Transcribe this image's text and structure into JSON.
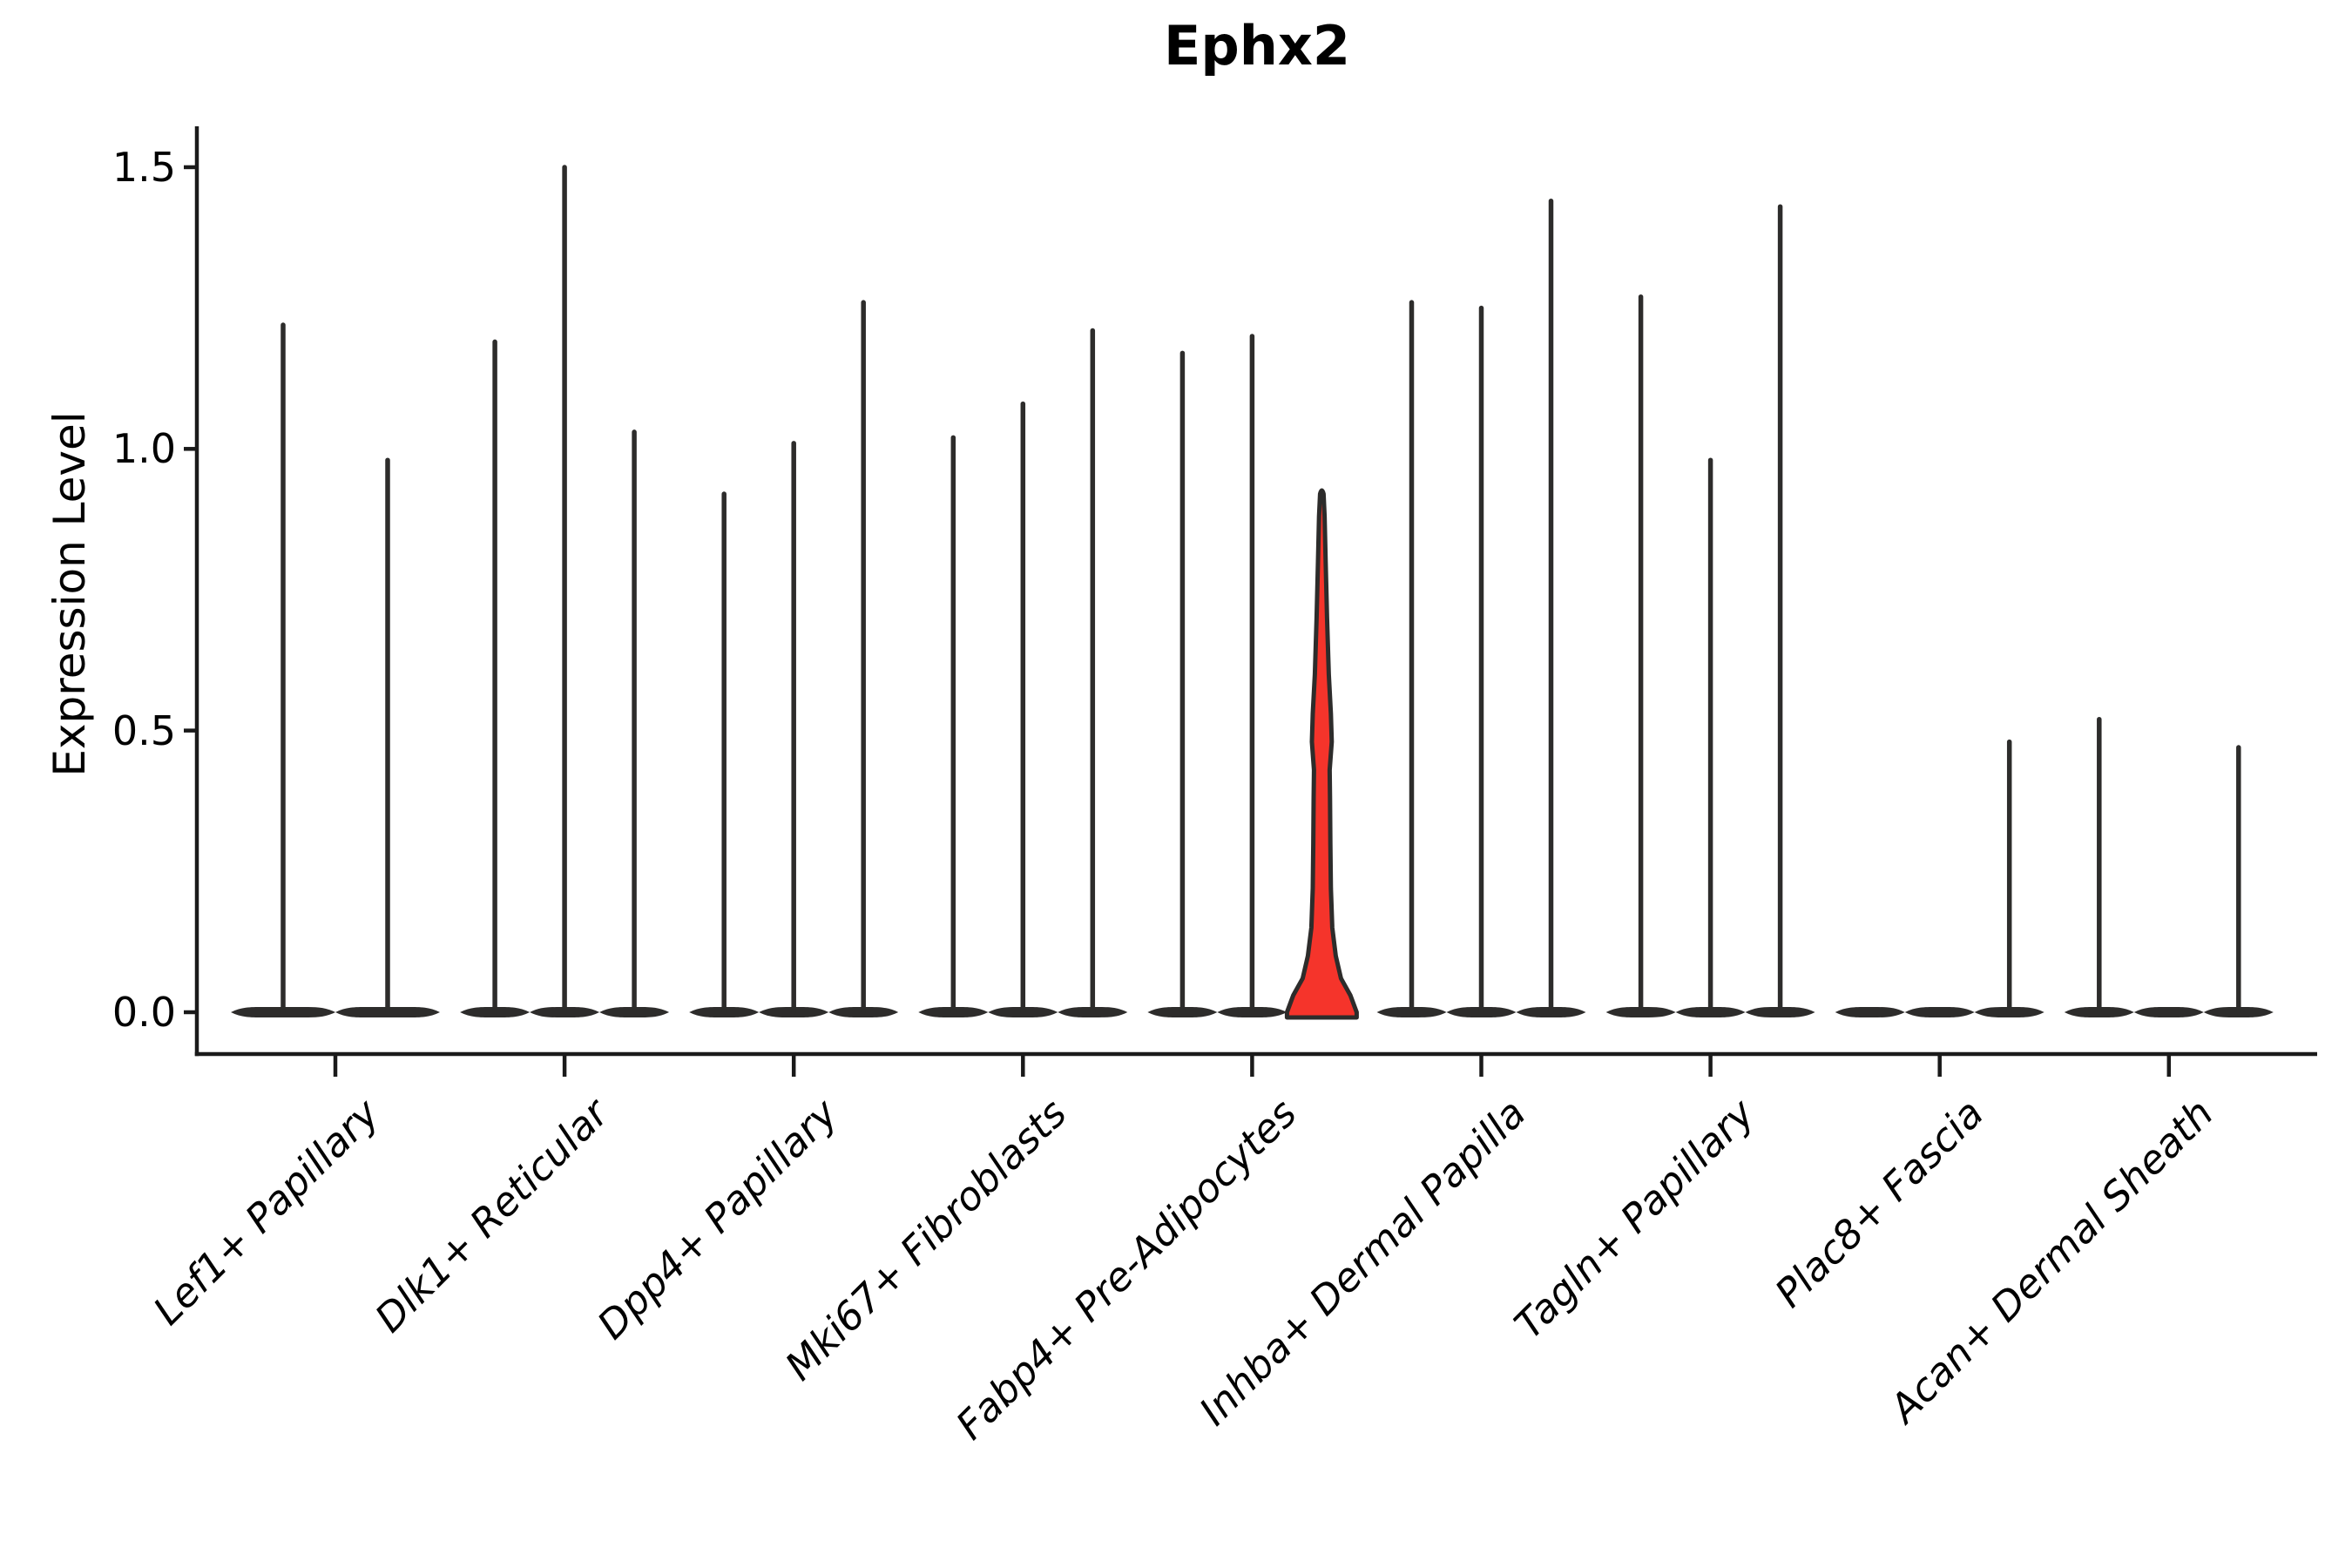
{
  "title": "Ephx2",
  "y_axis": {
    "label": "Expression Level",
    "ticks": [
      "0.0",
      "0.5",
      "1.0",
      "1.5"
    ],
    "tick_values": [
      0.0,
      0.5,
      1.0,
      1.5
    ]
  },
  "x_axis": {
    "categories": [
      "Lef1+ Papillary",
      "Dlk1+ Reticular",
      "Dpp4+ Papillary",
      "Mki67+ Fibroblasts",
      "Fabp4+ Pre-Adipocytes",
      "Inhba+ Dermal Papilla",
      "Tagln+ Papillary",
      "Plac8+ Fascia",
      "Acan+ Dermal Sheath"
    ]
  },
  "chart_data": {
    "type": "violin",
    "title": "Ephx2",
    "xlabel": "",
    "ylabel": "Expression Level",
    "ylim": [
      0,
      1.58
    ],
    "yticks": [
      0.0,
      0.5,
      1.0,
      1.5
    ],
    "grid": false,
    "legend": "none",
    "note": "Grouped single-cell expression violins; nearly all mass at 0 so each violin renders as a flat base plus a thin spike to its maximum. One violin (3rd of Fabp4+ Pre-Adipocytes) is highlighted red with visible density width.",
    "groups": [
      {
        "category": "Lef1+ Papillary",
        "violins": [
          {
            "max": 1.22
          },
          {
            "max": 0.98
          }
        ]
      },
      {
        "category": "Dlk1+ Reticular",
        "violins": [
          {
            "max": 1.19
          },
          {
            "max": 1.5
          },
          {
            "max": 1.03
          }
        ]
      },
      {
        "category": "Dpp4+ Papillary",
        "violins": [
          {
            "max": 0.92
          },
          {
            "max": 1.01
          },
          {
            "max": 1.26
          }
        ]
      },
      {
        "category": "Mki67+ Fibroblasts",
        "violins": [
          {
            "max": 1.02
          },
          {
            "max": 1.08
          },
          {
            "max": 1.21
          }
        ]
      },
      {
        "category": "Fabp4+ Pre-Adipocytes",
        "violins": [
          {
            "max": 1.17
          },
          {
            "max": 1.2
          },
          {
            "max": 0.92,
            "highlight": true
          }
        ]
      },
      {
        "category": "Inhba+ Dermal Papilla",
        "violins": [
          {
            "max": 1.26
          },
          {
            "max": 1.25
          },
          {
            "max": 1.44
          }
        ]
      },
      {
        "category": "Tagln+ Papillary",
        "violins": [
          {
            "max": 1.27
          },
          {
            "max": 0.98
          },
          {
            "max": 1.43
          }
        ]
      },
      {
        "category": "Plac8+ Fascia",
        "violins": [
          {
            "max": 0.0
          },
          {
            "max": 0.0
          },
          {
            "max": 0.48
          }
        ]
      },
      {
        "category": "Acan+ Dermal Sheath",
        "violins": [
          {
            "max": 0.52
          },
          {
            "max": 0.0
          },
          {
            "max": 0.47
          }
        ]
      }
    ],
    "highlight_profile": [
      [
        0.0,
        1.0
      ],
      [
        0.03,
        0.82
      ],
      [
        0.06,
        0.55
      ],
      [
        0.1,
        0.4
      ],
      [
        0.15,
        0.3
      ],
      [
        0.22,
        0.26
      ],
      [
        0.3,
        0.245
      ],
      [
        0.38,
        0.235
      ],
      [
        0.43,
        0.225
      ],
      [
        0.48,
        0.285
      ],
      [
        0.53,
        0.26
      ],
      [
        0.6,
        0.2
      ],
      [
        0.7,
        0.15
      ],
      [
        0.8,
        0.11
      ],
      [
        0.88,
        0.08
      ],
      [
        0.92,
        0.05
      ]
    ],
    "colors": {
      "highlight_fill": "#f5342b",
      "violin_stroke": "#2d2c2b",
      "axis": "#1a1a1a",
      "text": "#000000"
    }
  }
}
